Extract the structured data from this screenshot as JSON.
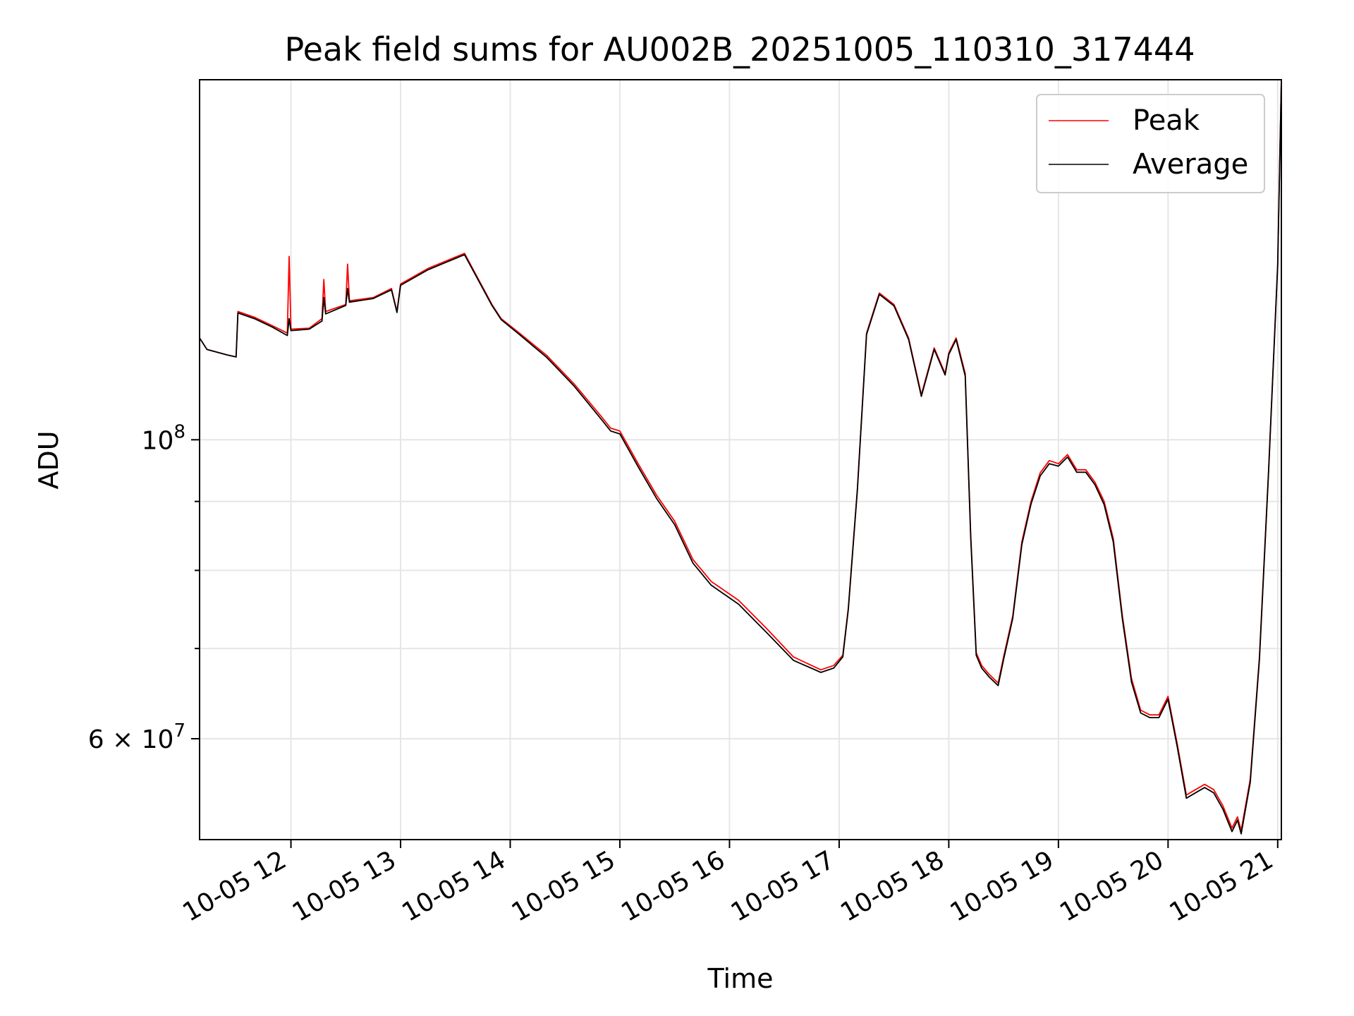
{
  "chart_data": {
    "type": "line",
    "title": "Peak field sums for AU002B_20251005_110310_317444",
    "xlabel": "Time",
    "ylabel": "ADU",
    "yscale": "log",
    "grid": true,
    "legend_position": "top-right",
    "xlim": [
      "2025-10-05 11:10",
      "2025-10-05 21:02"
    ],
    "ylim": [
      50500000,
      185000000
    ],
    "x_ticks": [
      {
        "value": "2025-10-05 12:00",
        "label": "10-05 12"
      },
      {
        "value": "2025-10-05 13:00",
        "label": "10-05 13"
      },
      {
        "value": "2025-10-05 14:00",
        "label": "10-05 14"
      },
      {
        "value": "2025-10-05 15:00",
        "label": "10-05 15"
      },
      {
        "value": "2025-10-05 16:00",
        "label": "10-05 16"
      },
      {
        "value": "2025-10-05 17:00",
        "label": "10-05 17"
      },
      {
        "value": "2025-10-05 18:00",
        "label": "10-05 18"
      },
      {
        "value": "2025-10-05 19:00",
        "label": "10-05 19"
      },
      {
        "value": "2025-10-05 20:00",
        "label": "10-05 20"
      },
      {
        "value": "2025-10-05 21:00",
        "label": "10-05 21"
      }
    ],
    "y_major_ticks": [
      {
        "value": 100000000,
        "base": "10",
        "exp": "8"
      },
      {
        "value": 60000000,
        "base": "6 × 10",
        "exp": "7"
      }
    ],
    "y_minor_ticks": [
      70000000,
      80000000,
      90000000
    ],
    "series": [
      {
        "name": "Peak",
        "color": "#ff0000",
        "x": [
          "2025-10-05 11:10",
          "2025-10-05 11:14",
          "2025-10-05 11:25",
          "2025-10-05 11:30",
          "2025-10-05 11:31",
          "2025-10-05 11:40",
          "2025-10-05 11:50",
          "2025-10-05 11:58",
          "2025-10-05 11:59",
          "2025-10-05 12:00",
          "2025-10-05 12:10",
          "2025-10-05 12:17",
          "2025-10-05 12:18",
          "2025-10-05 12:19",
          "2025-10-05 12:30",
          "2025-10-05 12:31",
          "2025-10-05 12:32",
          "2025-10-05 12:45",
          "2025-10-05 12:55",
          "2025-10-05 12:58",
          "2025-10-05 13:00",
          "2025-10-05 13:15",
          "2025-10-05 13:35",
          "2025-10-05 13:50",
          "2025-10-05 13:55",
          "2025-10-05 14:05",
          "2025-10-05 14:20",
          "2025-10-05 14:35",
          "2025-10-05 14:50",
          "2025-10-05 14:55",
          "2025-10-05 15:00",
          "2025-10-05 15:10",
          "2025-10-05 15:20",
          "2025-10-05 15:30",
          "2025-10-05 15:40",
          "2025-10-05 15:50",
          "2025-10-05 16:05",
          "2025-10-05 16:20",
          "2025-10-05 16:35",
          "2025-10-05 16:50",
          "2025-10-05 16:57",
          "2025-10-05 17:02",
          "2025-10-05 17:05",
          "2025-10-05 17:10",
          "2025-10-05 17:15",
          "2025-10-05 17:22",
          "2025-10-05 17:30",
          "2025-10-05 17:38",
          "2025-10-05 17:45",
          "2025-10-05 17:52",
          "2025-10-05 17:58",
          "2025-10-05 18:00",
          "2025-10-05 18:04",
          "2025-10-05 18:09",
          "2025-10-05 18:12",
          "2025-10-05 18:15",
          "2025-10-05 18:18",
          "2025-10-05 18:22",
          "2025-10-05 18:27",
          "2025-10-05 18:30",
          "2025-10-05 18:35",
          "2025-10-05 18:40",
          "2025-10-05 18:45",
          "2025-10-05 18:50",
          "2025-10-05 18:55",
          "2025-10-05 19:00",
          "2025-10-05 19:05",
          "2025-10-05 19:10",
          "2025-10-05 19:15",
          "2025-10-05 19:20",
          "2025-10-05 19:25",
          "2025-10-05 19:30",
          "2025-10-05 19:35",
          "2025-10-05 19:40",
          "2025-10-05 19:45",
          "2025-10-05 19:50",
          "2025-10-05 19:55",
          "2025-10-05 20:00",
          "2025-10-05 20:05",
          "2025-10-05 20:10",
          "2025-10-05 20:15",
          "2025-10-05 20:20",
          "2025-10-05 20:25",
          "2025-10-05 20:30",
          "2025-10-05 20:35",
          "2025-10-05 20:38",
          "2025-10-05 20:40",
          "2025-10-05 20:45",
          "2025-10-05 20:50",
          "2025-10-05 20:55",
          "2025-10-05 21:00",
          "2025-10-05 21:02"
        ],
        "y": [
          119000000,
          116700000,
          115600000,
          115200000,
          124500000,
          123300000,
          121500000,
          120000000,
          136800000,
          120800000,
          121000000,
          123000000,
          131500000,
          124500000,
          126000000,
          135000000,
          126800000,
          127500000,
          129500000,
          124500000,
          130500000,
          134000000,
          137500000,
          126000000,
          123000000,
          120000000,
          115500000,
          110000000,
          104000000,
          102000000,
          101500000,
          96000000,
          91000000,
          87000000,
          81500000,
          78500000,
          76000000,
          72500000,
          69000000,
          67500000,
          68000000,
          69200000,
          75000000,
          92000000,
          120000000,
          128500000,
          126000000,
          119000000,
          108000000,
          117000000,
          112000000,
          116000000,
          119000000,
          112000000,
          85000000,
          69500000,
          68000000,
          67000000,
          66000000,
          69000000,
          74000000,
          84000000,
          90000000,
          94500000,
          96500000,
          96000000,
          97500000,
          95000000,
          95000000,
          93000000,
          90000000,
          84500000,
          74000000,
          66500000,
          63000000,
          62500000,
          62500000,
          64500000,
          59500000,
          54500000,
          55000000,
          55500000,
          55000000,
          53500000,
          51500000,
          52500000,
          51300000,
          56000000,
          69000000,
          95000000,
          135000000,
          185000000
        ]
      },
      {
        "name": "Average",
        "color": "#000000",
        "x": [
          "2025-10-05 11:10",
          "2025-10-05 11:14",
          "2025-10-05 11:25",
          "2025-10-05 11:30",
          "2025-10-05 11:31",
          "2025-10-05 11:40",
          "2025-10-05 11:50",
          "2025-10-05 11:58",
          "2025-10-05 11:59",
          "2025-10-05 12:00",
          "2025-10-05 12:10",
          "2025-10-05 12:17",
          "2025-10-05 12:18",
          "2025-10-05 12:19",
          "2025-10-05 12:30",
          "2025-10-05 12:31",
          "2025-10-05 12:32",
          "2025-10-05 12:45",
          "2025-10-05 12:55",
          "2025-10-05 12:58",
          "2025-10-05 13:00",
          "2025-10-05 13:15",
          "2025-10-05 13:35",
          "2025-10-05 13:50",
          "2025-10-05 13:55",
          "2025-10-05 14:05",
          "2025-10-05 14:20",
          "2025-10-05 14:35",
          "2025-10-05 14:50",
          "2025-10-05 14:55",
          "2025-10-05 15:00",
          "2025-10-05 15:10",
          "2025-10-05 15:20",
          "2025-10-05 15:30",
          "2025-10-05 15:40",
          "2025-10-05 15:50",
          "2025-10-05 16:05",
          "2025-10-05 16:20",
          "2025-10-05 16:35",
          "2025-10-05 16:50",
          "2025-10-05 16:57",
          "2025-10-05 17:02",
          "2025-10-05 17:05",
          "2025-10-05 17:10",
          "2025-10-05 17:15",
          "2025-10-05 17:22",
          "2025-10-05 17:30",
          "2025-10-05 17:38",
          "2025-10-05 17:45",
          "2025-10-05 17:52",
          "2025-10-05 17:58",
          "2025-10-05 18:00",
          "2025-10-05 18:04",
          "2025-10-05 18:09",
          "2025-10-05 18:12",
          "2025-10-05 18:15",
          "2025-10-05 18:18",
          "2025-10-05 18:22",
          "2025-10-05 18:27",
          "2025-10-05 18:30",
          "2025-10-05 18:35",
          "2025-10-05 18:40",
          "2025-10-05 18:45",
          "2025-10-05 18:50",
          "2025-10-05 18:55",
          "2025-10-05 19:00",
          "2025-10-05 19:05",
          "2025-10-05 19:10",
          "2025-10-05 19:15",
          "2025-10-05 19:20",
          "2025-10-05 19:25",
          "2025-10-05 19:30",
          "2025-10-05 19:35",
          "2025-10-05 19:40",
          "2025-10-05 19:45",
          "2025-10-05 19:50",
          "2025-10-05 19:55",
          "2025-10-05 20:00",
          "2025-10-05 20:05",
          "2025-10-05 20:10",
          "2025-10-05 20:15",
          "2025-10-05 20:20",
          "2025-10-05 20:25",
          "2025-10-05 20:30",
          "2025-10-05 20:35",
          "2025-10-05 20:38",
          "2025-10-05 20:40",
          "2025-10-05 20:45",
          "2025-10-05 20:50",
          "2025-10-05 20:55",
          "2025-10-05 21:00",
          "2025-10-05 21:02"
        ],
        "y": [
          119000000,
          116700000,
          115600000,
          115200000,
          124200000,
          123000000,
          121200000,
          119500000,
          123000000,
          120500000,
          120800000,
          122500000,
          127500000,
          124000000,
          125800000,
          129500000,
          126500000,
          127300000,
          129200000,
          124300000,
          130200000,
          133700000,
          137200000,
          125800000,
          122800000,
          119700000,
          115100000,
          109600000,
          103500000,
          101500000,
          101000000,
          95500000,
          90500000,
          86500000,
          81000000,
          78000000,
          75500000,
          72000000,
          68600000,
          67200000,
          67700000,
          69000000,
          74800000,
          91800000,
          119700000,
          128200000,
          125700000,
          118700000,
          107700000,
          116700000,
          111700000,
          115700000,
          118700000,
          111500000,
          84600000,
          69200000,
          67700000,
          66700000,
          65700000,
          68700000,
          73700000,
          83600000,
          89600000,
          94000000,
          96000000,
          95600000,
          97100000,
          94600000,
          94600000,
          92600000,
          89500000,
          84000000,
          73600000,
          66100000,
          62700000,
          62200000,
          62200000,
          64200000,
          59200000,
          54200000,
          54700000,
          55200000,
          54700000,
          53200000,
          51200000,
          52200000,
          51000000,
          55700000,
          68700000,
          94700000,
          134700000,
          185000000
        ]
      }
    ]
  }
}
